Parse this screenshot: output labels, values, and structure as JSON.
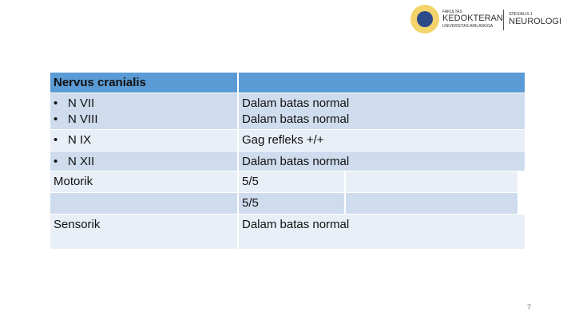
{
  "logo": {
    "faculty": [
      "FAKULTAS",
      "KEDOKTERAN",
      "UNIVERSITAS AIRLANGGA"
    ],
    "program": [
      "SPESIALIS 1",
      "NEUROLOGI"
    ]
  },
  "table": {
    "header": "Nervus cranialis",
    "rows": [
      {
        "bullets": [
          "N VII",
          "N VIII"
        ],
        "values": [
          "Dalam batas normal",
          "Dalam batas normal"
        ]
      },
      {
        "bullets": [
          "N IX"
        ],
        "values": [
          "Gag refleks +/+"
        ]
      },
      {
        "bullets": [
          "N XII"
        ],
        "values": [
          "Dalam batas normal"
        ]
      },
      {
        "label": "Motorik",
        "values": [
          "5/5"
        ]
      },
      {
        "values": [
          "5/5"
        ]
      },
      {
        "label": "Sensorik",
        "values": [
          "Dalam batas normal"
        ]
      }
    ]
  },
  "page_number": "7"
}
